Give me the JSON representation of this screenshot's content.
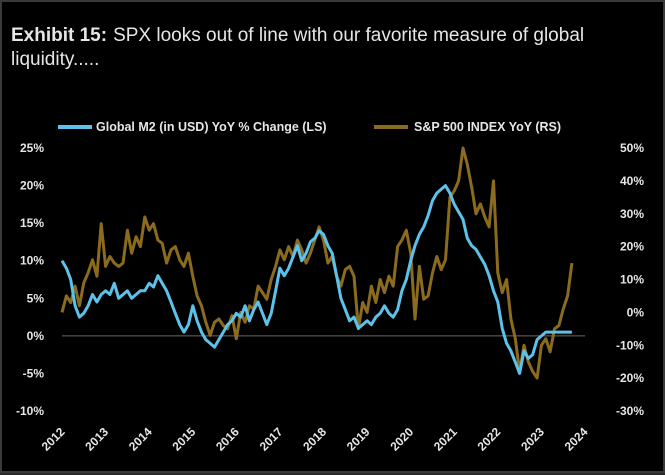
{
  "exhibit": {
    "label": "Exhibit 15:",
    "title": "SPX looks out of line with our favorite measure of global liquidity....."
  },
  "colors": {
    "background": "#000000",
    "m2": "#5cc2ea",
    "spx": "#8b6b1e",
    "text": "#e6e6e6",
    "zero_line": "#6a6a6a"
  },
  "chart_data": {
    "type": "line",
    "title": "",
    "x_ticks": [
      "2012",
      "2013",
      "2014",
      "2015",
      "2016",
      "2017",
      "2018",
      "2019",
      "2020",
      "2021",
      "2022",
      "2023",
      "2024"
    ],
    "x_range": [
      2012,
      2024
    ],
    "y_left": {
      "ticks": [
        "25%",
        "20%",
        "15%",
        "10%",
        "5%",
        "0%",
        "-5%",
        "-10%"
      ],
      "min": -10,
      "max": 25
    },
    "y_right": {
      "ticks": [
        "50%",
        "40%",
        "30%",
        "20%",
        "10%",
        "0%",
        "-10%",
        "-20%",
        "-30%"
      ],
      "min": -30,
      "max": 50
    },
    "legend": {
      "placement": "top",
      "entries": [
        "Global M2 (in USD) YoY % Change (LS)",
        "S&P 500 INDEX YoY (RS)"
      ]
    },
    "series": [
      {
        "name": "Global M2 (in USD) YoY % Change (LS)",
        "axis": "left",
        "x": [
          2012.0,
          2012.1,
          2012.2,
          2012.3,
          2012.4,
          2012.5,
          2012.6,
          2012.7,
          2012.8,
          2012.9,
          2013.0,
          2013.1,
          2013.2,
          2013.3,
          2013.4,
          2013.5,
          2013.6,
          2013.7,
          2013.8,
          2013.9,
          2014.0,
          2014.1,
          2014.2,
          2014.3,
          2014.4,
          2014.5,
          2014.6,
          2014.7,
          2014.8,
          2014.9,
          2015.0,
          2015.1,
          2015.2,
          2015.3,
          2015.4,
          2015.5,
          2015.6,
          2015.7,
          2015.8,
          2015.9,
          2016.0,
          2016.1,
          2016.2,
          2016.3,
          2016.4,
          2016.5,
          2016.6,
          2016.7,
          2016.8,
          2016.9,
          2017.0,
          2017.1,
          2017.2,
          2017.3,
          2017.4,
          2017.5,
          2017.6,
          2017.7,
          2017.8,
          2017.9,
          2018.0,
          2018.1,
          2018.2,
          2018.3,
          2018.4,
          2018.5,
          2018.6,
          2018.7,
          2018.8,
          2018.9,
          2019.0,
          2019.1,
          2019.2,
          2019.3,
          2019.4,
          2019.5,
          2019.6,
          2019.7,
          2019.8,
          2019.9,
          2020.0,
          2020.1,
          2020.2,
          2020.3,
          2020.4,
          2020.5,
          2020.6,
          2020.7,
          2020.8,
          2020.9,
          2021.0,
          2021.1,
          2021.2,
          2021.3,
          2021.4,
          2021.5,
          2021.6,
          2021.7,
          2021.8,
          2021.9,
          2022.0,
          2022.1,
          2022.2,
          2022.3,
          2022.4,
          2022.5,
          2022.6,
          2022.7,
          2022.8,
          2022.9,
          2023.0,
          2023.1,
          2023.2,
          2023.3,
          2023.4,
          2023.5,
          2023.6,
          2023.7
        ],
        "values": [
          10.0,
          9.0,
          7.5,
          4.0,
          2.5,
          3.0,
          4.0,
          5.5,
          4.5,
          5.5,
          6.0,
          5.5,
          7.0,
          5.0,
          5.5,
          6.0,
          5.0,
          5.5,
          6.0,
          6.0,
          7.0,
          6.5,
          8.0,
          7.0,
          6.0,
          4.5,
          3.0,
          1.5,
          0.5,
          1.5,
          4.0,
          2.0,
          0.5,
          -0.5,
          -1.0,
          -1.5,
          -0.5,
          0.5,
          1.5,
          2.0,
          3.0,
          2.5,
          4.0,
          2.0,
          3.5,
          4.5,
          3.0,
          1.5,
          3.0,
          6.0,
          9.0,
          8.0,
          9.0,
          10.5,
          12.0,
          10.0,
          11.0,
          12.5,
          13.0,
          14.0,
          13.5,
          12.0,
          11.0,
          8.0,
          5.0,
          3.5,
          2.0,
          2.5,
          1.0,
          1.5,
          2.0,
          1.5,
          2.5,
          3.0,
          4.0,
          3.0,
          2.5,
          3.5,
          6.0,
          7.5,
          10.0,
          12.0,
          13.5,
          14.5,
          16.0,
          18.0,
          19.0,
          19.5,
          20.0,
          19.0,
          17.5,
          16.5,
          15.5,
          13.0,
          12.0,
          11.5,
          10.5,
          9.5,
          8.0,
          6.0,
          4.5,
          1.0,
          -1.0,
          -2.0,
          -3.5,
          -5.0,
          -2.0,
          -3.0,
          -2.5,
          -0.5,
          0.0,
          0.5,
          0.5,
          0.5,
          0.5,
          0.5,
          0.5,
          0.5
        ],
        "note": "values in % (left axis)"
      },
      {
        "name": "S&P 500 INDEX YoY (RS)",
        "axis": "right",
        "x": [
          2012.0,
          2012.1,
          2012.2,
          2012.3,
          2012.4,
          2012.5,
          2012.6,
          2012.7,
          2012.8,
          2012.9,
          2013.0,
          2013.1,
          2013.2,
          2013.3,
          2013.4,
          2013.5,
          2013.6,
          2013.7,
          2013.8,
          2013.9,
          2014.0,
          2014.1,
          2014.2,
          2014.3,
          2014.4,
          2014.5,
          2014.6,
          2014.7,
          2014.8,
          2014.9,
          2015.0,
          2015.1,
          2015.2,
          2015.3,
          2015.4,
          2015.5,
          2015.6,
          2015.7,
          2015.8,
          2015.9,
          2016.0,
          2016.1,
          2016.2,
          2016.3,
          2016.4,
          2016.5,
          2016.6,
          2016.7,
          2016.8,
          2016.9,
          2017.0,
          2017.1,
          2017.2,
          2017.3,
          2017.4,
          2017.5,
          2017.6,
          2017.7,
          2017.8,
          2017.9,
          2018.0,
          2018.1,
          2018.2,
          2018.3,
          2018.4,
          2018.5,
          2018.6,
          2018.7,
          2018.8,
          2018.9,
          2019.0,
          2019.1,
          2019.2,
          2019.3,
          2019.4,
          2019.5,
          2019.6,
          2019.7,
          2019.8,
          2019.9,
          2020.0,
          2020.1,
          2020.2,
          2020.3,
          2020.4,
          2020.5,
          2020.6,
          2020.7,
          2020.8,
          2020.9,
          2021.0,
          2021.1,
          2021.2,
          2021.3,
          2021.4,
          2021.5,
          2021.6,
          2021.7,
          2021.8,
          2021.9,
          2022.0,
          2022.1,
          2022.2,
          2022.3,
          2022.4,
          2022.5,
          2022.6,
          2022.7,
          2022.8,
          2022.9,
          2023.0,
          2023.1,
          2023.2,
          2023.3,
          2023.4,
          2023.5,
          2023.6,
          2023.7
        ],
        "values": [
          0,
          5,
          3,
          8,
          2,
          9,
          12,
          16,
          11,
          27,
          14,
          17,
          15,
          14,
          15,
          25,
          18,
          23,
          20,
          29,
          25,
          27,
          22,
          21,
          15,
          19,
          20,
          16,
          14,
          18,
          11,
          5,
          2,
          -3,
          -7,
          -3,
          -2,
          -4,
          -5,
          -1,
          -8,
          0,
          -3,
          2,
          1,
          8,
          6,
          4,
          10,
          14,
          19,
          16,
          20,
          17,
          22,
          19,
          15,
          18,
          22,
          26,
          22,
          15,
          17,
          11,
          8,
          13,
          14,
          11,
          -5,
          3,
          0,
          8,
          3,
          10,
          6,
          11,
          8,
          20,
          22,
          25,
          18,
          -2,
          14,
          4,
          5,
          12,
          17,
          13,
          16,
          35,
          37,
          40,
          50,
          45,
          38,
          30,
          33,
          29,
          26,
          40,
          12,
          6,
          10,
          -2,
          -8,
          -18,
          -10,
          -15,
          -18,
          -20,
          -10,
          -8,
          -12,
          -5,
          -4,
          1,
          5,
          15
        ]
      }
    ]
  }
}
